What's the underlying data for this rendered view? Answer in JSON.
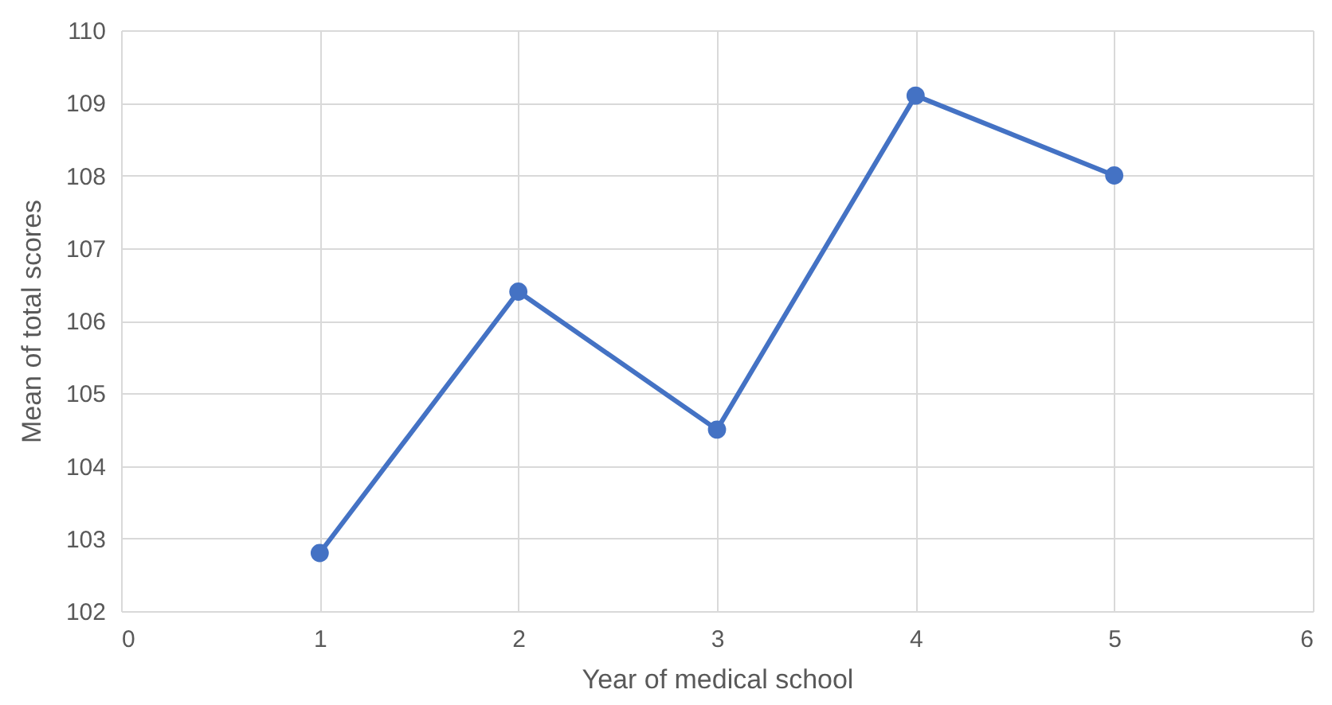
{
  "chart_data": {
    "type": "line",
    "xlabel": "Year of medical school",
    "ylabel": "Mean of total scores",
    "x": [
      1,
      2,
      3,
      4,
      5
    ],
    "series": [
      {
        "color": "#4472c4",
        "values": [
          102.8,
          106.4,
          104.5,
          109.1,
          108.0
        ]
      }
    ],
    "xlim": [
      0,
      6
    ],
    "xticks": [
      0,
      1,
      2,
      3,
      4,
      5,
      6
    ],
    "ylim": [
      102,
      110
    ],
    "yticks": [
      102,
      103,
      104,
      105,
      106,
      107,
      108,
      109,
      110
    ],
    "grid": true,
    "marker": "circle",
    "line_style": "solid"
  }
}
